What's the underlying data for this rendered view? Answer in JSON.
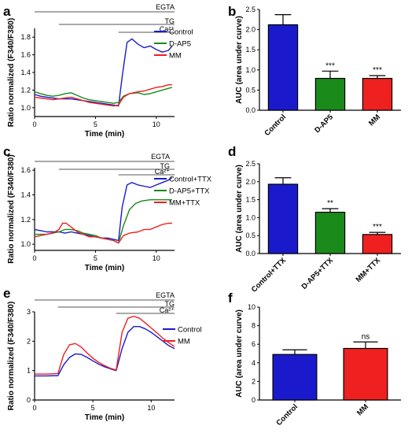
{
  "colors": {
    "blue": "#1a1acc",
    "green": "#1a8a1a",
    "red": "#ee2020",
    "axis": "#000000",
    "bar_outline": "#000000"
  },
  "chart_data": [
    {
      "panel": "a",
      "type": "line",
      "ylabel": "Ratio normalized (F340/F380)",
      "xlabel": "Time (min)",
      "xlim": [
        0,
        11.5
      ],
      "ylim": [
        0.9,
        1.9
      ],
      "xticks": [
        0,
        5,
        10
      ],
      "yticks": [
        1.0,
        1.2,
        1.4,
        1.6,
        1.8
      ],
      "treatments": [
        {
          "label": "EGTA",
          "start": 0,
          "end": 11.5
        },
        {
          "label": "TG",
          "start": 2,
          "end": 11.5
        },
        {
          "label": "Ca²⁺",
          "start": 6.9,
          "end": 11.5
        }
      ],
      "series": [
        {
          "name": "Control",
          "color": "#1a1acc",
          "x": [
            0,
            0.5,
            1,
            1.5,
            2,
            2.5,
            3,
            3.5,
            4,
            4.5,
            5,
            5.5,
            6,
            6.5,
            6.9,
            7.2,
            7.6,
            8,
            8.5,
            9,
            9.5,
            10,
            10.5,
            11,
            11.3
          ],
          "y": [
            1.15,
            1.13,
            1.12,
            1.11,
            1.1,
            1.1,
            1.1,
            1.09,
            1.08,
            1.07,
            1.06,
            1.05,
            1.04,
            1.03,
            1.02,
            1.35,
            1.74,
            1.78,
            1.72,
            1.68,
            1.7,
            1.66,
            1.63,
            1.65,
            1.7
          ]
        },
        {
          "name": "D-AP5",
          "color": "#1a8a1a",
          "x": [
            0,
            0.5,
            1,
            1.5,
            2,
            2.5,
            3,
            3.5,
            4,
            4.5,
            5,
            5.5,
            6,
            6.5,
            6.9,
            7.3,
            7.8,
            8.5,
            9,
            9.5,
            10,
            10.5,
            11,
            11.3
          ],
          "y": [
            1.18,
            1.16,
            1.14,
            1.13,
            1.14,
            1.16,
            1.17,
            1.14,
            1.11,
            1.09,
            1.08,
            1.07,
            1.06,
            1.05,
            1.06,
            1.13,
            1.16,
            1.17,
            1.15,
            1.16,
            1.18,
            1.2,
            1.22,
            1.23
          ]
        },
        {
          "name": "MM",
          "color": "#ee2020",
          "x": [
            0,
            0.5,
            1,
            1.5,
            2,
            2.5,
            3,
            3.5,
            4,
            4.5,
            5,
            5.5,
            6,
            6.5,
            6.9,
            7.3,
            7.8,
            8.5,
            9,
            9.5,
            10,
            10.5,
            11,
            11.3
          ],
          "y": [
            1.12,
            1.11,
            1.1,
            1.09,
            1.1,
            1.11,
            1.12,
            1.1,
            1.08,
            1.06,
            1.05,
            1.04,
            1.03,
            1.02,
            1.03,
            1.12,
            1.16,
            1.18,
            1.19,
            1.21,
            1.23,
            1.24,
            1.26,
            1.26
          ]
        }
      ]
    },
    {
      "panel": "b",
      "type": "bar",
      "ylabel": "AUC (area under curve)",
      "ylim": [
        0,
        2.5
      ],
      "yticks": [
        0.0,
        0.5,
        1.0,
        1.5,
        2.0,
        2.5
      ],
      "categories": [
        "Control",
        "D-AP5",
        "MM"
      ],
      "values": [
        2.12,
        0.79,
        0.79
      ],
      "errors": [
        0.25,
        0.18,
        0.07
      ],
      "significance": [
        "",
        "***",
        "***"
      ],
      "colors": [
        "#1a1acc",
        "#1a8a1a",
        "#ee2020"
      ]
    },
    {
      "panel": "c",
      "type": "line",
      "ylabel": "Ratio normalized (F340/F380)",
      "xlabel": "Time (min)",
      "xlim": [
        0,
        11.5
      ],
      "ylim": [
        0.95,
        1.62
      ],
      "xticks": [
        0,
        5,
        10
      ],
      "yticks": [
        1.0,
        1.2,
        1.4,
        1.6
      ],
      "treatments": [
        {
          "label": "EGTA",
          "start": 0,
          "end": 11.5
        },
        {
          "label": "TG",
          "start": 2,
          "end": 11.5
        },
        {
          "label": "Ca²⁺",
          "start": 6.9,
          "end": 11.5
        }
      ],
      "series": [
        {
          "name": "Control+TTX",
          "color": "#1a1acc",
          "x": [
            0,
            0.5,
            1,
            1.5,
            2,
            2.5,
            3,
            3.5,
            4,
            4.5,
            5,
            5.5,
            6,
            6.5,
            6.9,
            7.2,
            7.6,
            8,
            8.5,
            9,
            9.5,
            10,
            10.5,
            11,
            11.3
          ],
          "y": [
            1.12,
            1.11,
            1.1,
            1.1,
            1.1,
            1.09,
            1.1,
            1.09,
            1.08,
            1.07,
            1.06,
            1.05,
            1.05,
            1.04,
            1.03,
            1.3,
            1.48,
            1.5,
            1.48,
            1.47,
            1.46,
            1.48,
            1.5,
            1.52,
            1.54
          ]
        },
        {
          "name": "D-AP5+TTX",
          "color": "#1a8a1a",
          "x": [
            0,
            0.5,
            1,
            1.5,
            2,
            2.5,
            3,
            3.5,
            4,
            4.5,
            5,
            5.5,
            6,
            6.5,
            6.9,
            7.3,
            7.8,
            8.3,
            8.8,
            9.5,
            10,
            10.5,
            11,
            11.3
          ],
          "y": [
            1.08,
            1.08,
            1.08,
            1.09,
            1.1,
            1.12,
            1.12,
            1.11,
            1.09,
            1.08,
            1.07,
            1.05,
            1.04,
            1.03,
            1.01,
            1.15,
            1.28,
            1.33,
            1.35,
            1.36,
            1.36,
            1.36,
            1.36,
            1.36
          ]
        },
        {
          "name": "MM+TTX",
          "color": "#ee2020",
          "x": [
            0,
            0.5,
            1,
            1.5,
            2,
            2.3,
            2.6,
            3,
            3.5,
            4,
            4.5,
            5,
            5.5,
            6,
            6.5,
            6.9,
            7.3,
            7.8,
            8.5,
            9,
            9.5,
            10,
            10.5,
            11,
            11.3
          ],
          "y": [
            1.06,
            1.07,
            1.08,
            1.09,
            1.12,
            1.17,
            1.17,
            1.14,
            1.1,
            1.08,
            1.06,
            1.06,
            1.05,
            1.04,
            1.03,
            1.01,
            1.07,
            1.09,
            1.1,
            1.12,
            1.12,
            1.14,
            1.16,
            1.17,
            1.17
          ]
        }
      ]
    },
    {
      "panel": "d",
      "type": "bar",
      "ylabel": "AUC (area under curve)",
      "ylim": [
        0,
        2.5
      ],
      "yticks": [
        0.0,
        0.5,
        1.0,
        1.5,
        2.0,
        2.5
      ],
      "categories": [
        "Control+TTX",
        "D-AP5+TTX",
        "MM+TTX"
      ],
      "values": [
        1.93,
        1.15,
        0.53
      ],
      "errors": [
        0.18,
        0.1,
        0.06
      ],
      "significance": [
        "",
        "**",
        "***"
      ],
      "colors": [
        "#1a1acc",
        "#1a8a1a",
        "#ee2020"
      ]
    },
    {
      "panel": "e",
      "type": "line",
      "ylabel": "Ratio normalized (F340/F380)",
      "xlabel": "Time (min)",
      "xlim": [
        0,
        12
      ],
      "ylim": [
        0,
        3
      ],
      "xticks": [
        0,
        5,
        10
      ],
      "yticks": [
        0,
        1,
        2,
        3
      ],
      "treatments": [
        {
          "label": "EGTA",
          "start": 0,
          "end": 12
        },
        {
          "label": "TG",
          "start": 2,
          "end": 12
        },
        {
          "label": "Ca²⁺",
          "start": 7,
          "end": 12
        }
      ],
      "series": [
        {
          "name": "Control",
          "color": "#1a1acc",
          "x": [
            0,
            1,
            2,
            2.5,
            3,
            3.5,
            4,
            4.5,
            5,
            5.5,
            6,
            6.5,
            7,
            7.5,
            8,
            8.5,
            9,
            9.5,
            10,
            10.5,
            11,
            11.5,
            12
          ],
          "y": [
            0.82,
            0.82,
            0.83,
            1.2,
            1.45,
            1.57,
            1.55,
            1.45,
            1.33,
            1.22,
            1.13,
            1.06,
            1.0,
            1.75,
            2.3,
            2.5,
            2.5,
            2.42,
            2.3,
            2.15,
            2.0,
            1.85,
            1.75
          ]
        },
        {
          "name": "MM",
          "color": "#ee2020",
          "x": [
            0,
            1,
            2,
            2.5,
            3,
            3.5,
            4,
            4.5,
            5,
            5.5,
            6,
            6.5,
            7,
            7.5,
            8,
            8.5,
            9,
            9.5,
            10,
            10.5,
            11,
            11.5,
            12
          ],
          "y": [
            0.88,
            0.88,
            0.9,
            1.55,
            1.88,
            1.92,
            1.8,
            1.6,
            1.42,
            1.28,
            1.17,
            1.08,
            1.02,
            2.3,
            2.78,
            2.85,
            2.78,
            2.62,
            2.45,
            2.28,
            2.1,
            1.95,
            1.82
          ]
        }
      ]
    },
    {
      "panel": "f",
      "type": "bar",
      "ylabel": "AUC (area under curve)",
      "ylim": [
        0,
        10
      ],
      "yticks": [
        0,
        2,
        4,
        6,
        8,
        10
      ],
      "categories": [
        "Control",
        "MM"
      ],
      "values": [
        4.9,
        5.55
      ],
      "errors": [
        0.5,
        0.7
      ],
      "significance": [
        "",
        "ns"
      ],
      "colors": [
        "#1a1acc",
        "#ee2020"
      ]
    }
  ]
}
